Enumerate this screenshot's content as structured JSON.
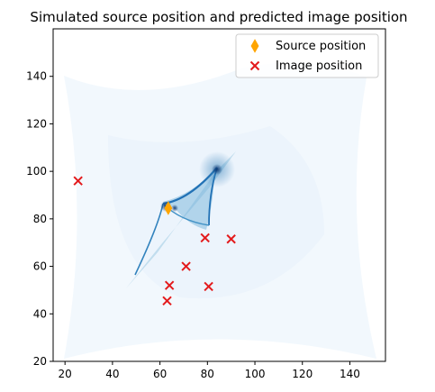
{
  "chart_data": {
    "type": "scatter",
    "title": "Simulated source position and predicted image position",
    "xlabel": "",
    "ylabel": "",
    "xlim": [
      15,
      155
    ],
    "ylim": [
      20,
      160
    ],
    "x_ticks": [
      20,
      40,
      60,
      80,
      100,
      120,
      140
    ],
    "y_ticks": [
      20,
      40,
      60,
      80,
      100,
      120,
      140
    ],
    "grid": false,
    "legend_position": "top-right",
    "background": {
      "description": "blue caustic intensity map",
      "colormap": "Blues"
    },
    "series": [
      {
        "name": "Source position",
        "marker": "thin_diamond",
        "color": "#ffa500",
        "points": [
          {
            "x": 63.5,
            "y": 84.5
          }
        ]
      },
      {
        "name": "Image position",
        "marker": "x",
        "color": "#e31a1c",
        "points": [
          {
            "x": 25.5,
            "y": 96
          },
          {
            "x": 79,
            "y": 72
          },
          {
            "x": 90,
            "y": 71.5
          },
          {
            "x": 71,
            "y": 60
          },
          {
            "x": 64,
            "y": 52
          },
          {
            "x": 80.5,
            "y": 51.5
          },
          {
            "x": 63,
            "y": 45.5
          }
        ]
      }
    ]
  }
}
